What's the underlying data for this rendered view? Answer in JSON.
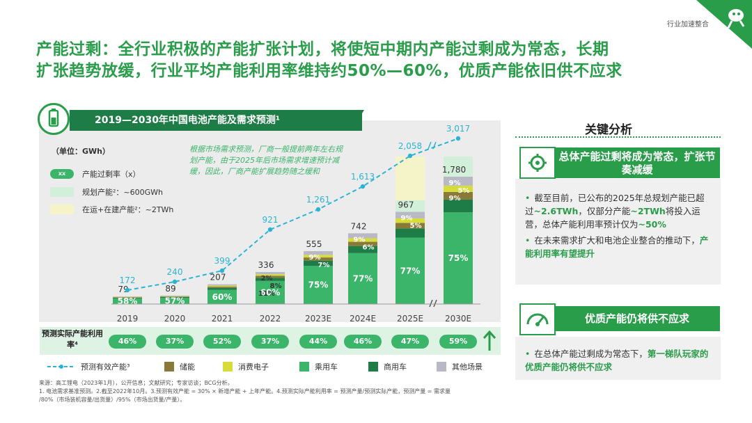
{
  "header": {
    "tag": "行业加速整合",
    "title_line1": "产能过剩：全行业积极的产能扩张计划，将使短中期内产能过剩成为常态，长期",
    "title_line2": "扩张趋势放缓，行业平均产能利用率维持约50%—60%，优质产能依旧供不应求"
  },
  "chart_panel": {
    "banner": "2019—2030年中国电池产能及需求预测¹",
    "unit": "（单位：GWh）",
    "legend": {
      "pill_text": "xx",
      "surplus_rate": "产能过剩率（x）",
      "planned": "规划产能²：~600GWh",
      "operating": "在运+在建产能²：~2TWh"
    },
    "note": "根据市场需求预测，厂商一般提前两年左右规划产能，由于2025年后市场需求增速预计减缓，因此，厂商产能扩展趋势随之缓和",
    "util_label": "预测实际产能利用率⁴",
    "util_values": [
      "46%",
      "37%",
      "52%",
      "37%",
      "44%",
      "46%",
      "47%",
      "59%"
    ],
    "bottom_legend": {
      "forecast": "预测有效产能³",
      "storage": "储能",
      "consumer": "消费电子",
      "passenger": "乘用车",
      "commercial": "商用车",
      "other": "其他场景"
    },
    "footer_line1": "来源：高工锂电（2023年1月），公开信息；文献研究；专家访谈；BCG分析。",
    "footer_line2": "1. 电池需求基准预测。2.截至2022年10月。3.预测有效产能 = 30% × 新增产能 + 上年产能。4.预测实际产能利用率 = 预测产量/预测实际产能，预测产量 = 需求量",
    "footer_line3": "/80%（市场装机容量/出货量）/95%（市场出货量/产量）。"
  },
  "chart_data": {
    "type": "bar",
    "categories": [
      "2019",
      "2020",
      "2021",
      "2022",
      "2023E",
      "2024E",
      "2025E",
      "2030E"
    ],
    "demand_totals": [
      79,
      89,
      207,
      336,
      555,
      742,
      967,
      1780
    ],
    "forecast_capacity": [
      172,
      240,
      399,
      921,
      1261,
      1613,
      2058,
      3017
    ],
    "passenger_share_labels": [
      "58%",
      "57%",
      "60%",
      "60%",
      "75%",
      "77%",
      "77%",
      "75%"
    ],
    "segment_labels": [
      [],
      [],
      [],
      [
        "2%",
        "8%",
        "11%"
      ],
      [
        "9%",
        "7%"
      ],
      [
        "9%",
        "6%"
      ],
      [
        "9%",
        "5%"
      ],
      [
        "9%",
        "5%",
        "9%"
      ]
    ],
    "series": [
      {
        "name": "乘用车",
        "color": "#3bb56a"
      },
      {
        "name": "商用车",
        "color": "#1e7d47"
      },
      {
        "name": "储能",
        "color": "#8a7a3a"
      },
      {
        "name": "消费电子",
        "color": "#d6dc3c"
      },
      {
        "name": "其他场景",
        "color": "#b9b9c6"
      }
    ],
    "planned_capacity_overlay": {
      "label": "规划产能²：~600GWh",
      "color": "#d2efd9"
    },
    "operating_capacity_overlay": {
      "label": "在运+在建产能²：~2TWh",
      "color": "#f5f3c8"
    },
    "y_break_between": [
      "2025E",
      "2030E"
    ]
  },
  "key_analysis": {
    "title": "关键分析",
    "box1_header": "总体产能过剩将成为常态，扩张节奏减缓",
    "box1_bullets": [
      {
        "parts": [
          "截至目前，已公布的2025年总规划产能已超过",
          "~2.6TWh",
          "，仅部分产能",
          "~2TWh",
          "将投入运营，总体产能利用率预计仅为",
          "~50%"
        ]
      },
      {
        "parts": [
          "在未来需求扩大和电池企业整合的推动下，",
          "产能利用率有望提升"
        ]
      }
    ],
    "box2_header": "优质产能仍将供不应求",
    "box2_bullets": [
      {
        "parts": [
          "在总体产能过剩成为常态下，",
          "第一梯队玩家的优质产能仍将供不应求"
        ]
      }
    ]
  },
  "colors": {
    "green": "#2a9d4b",
    "dark_green": "#1e7d47",
    "light_green": "#3bb56a",
    "line": "#2bb3d6"
  }
}
